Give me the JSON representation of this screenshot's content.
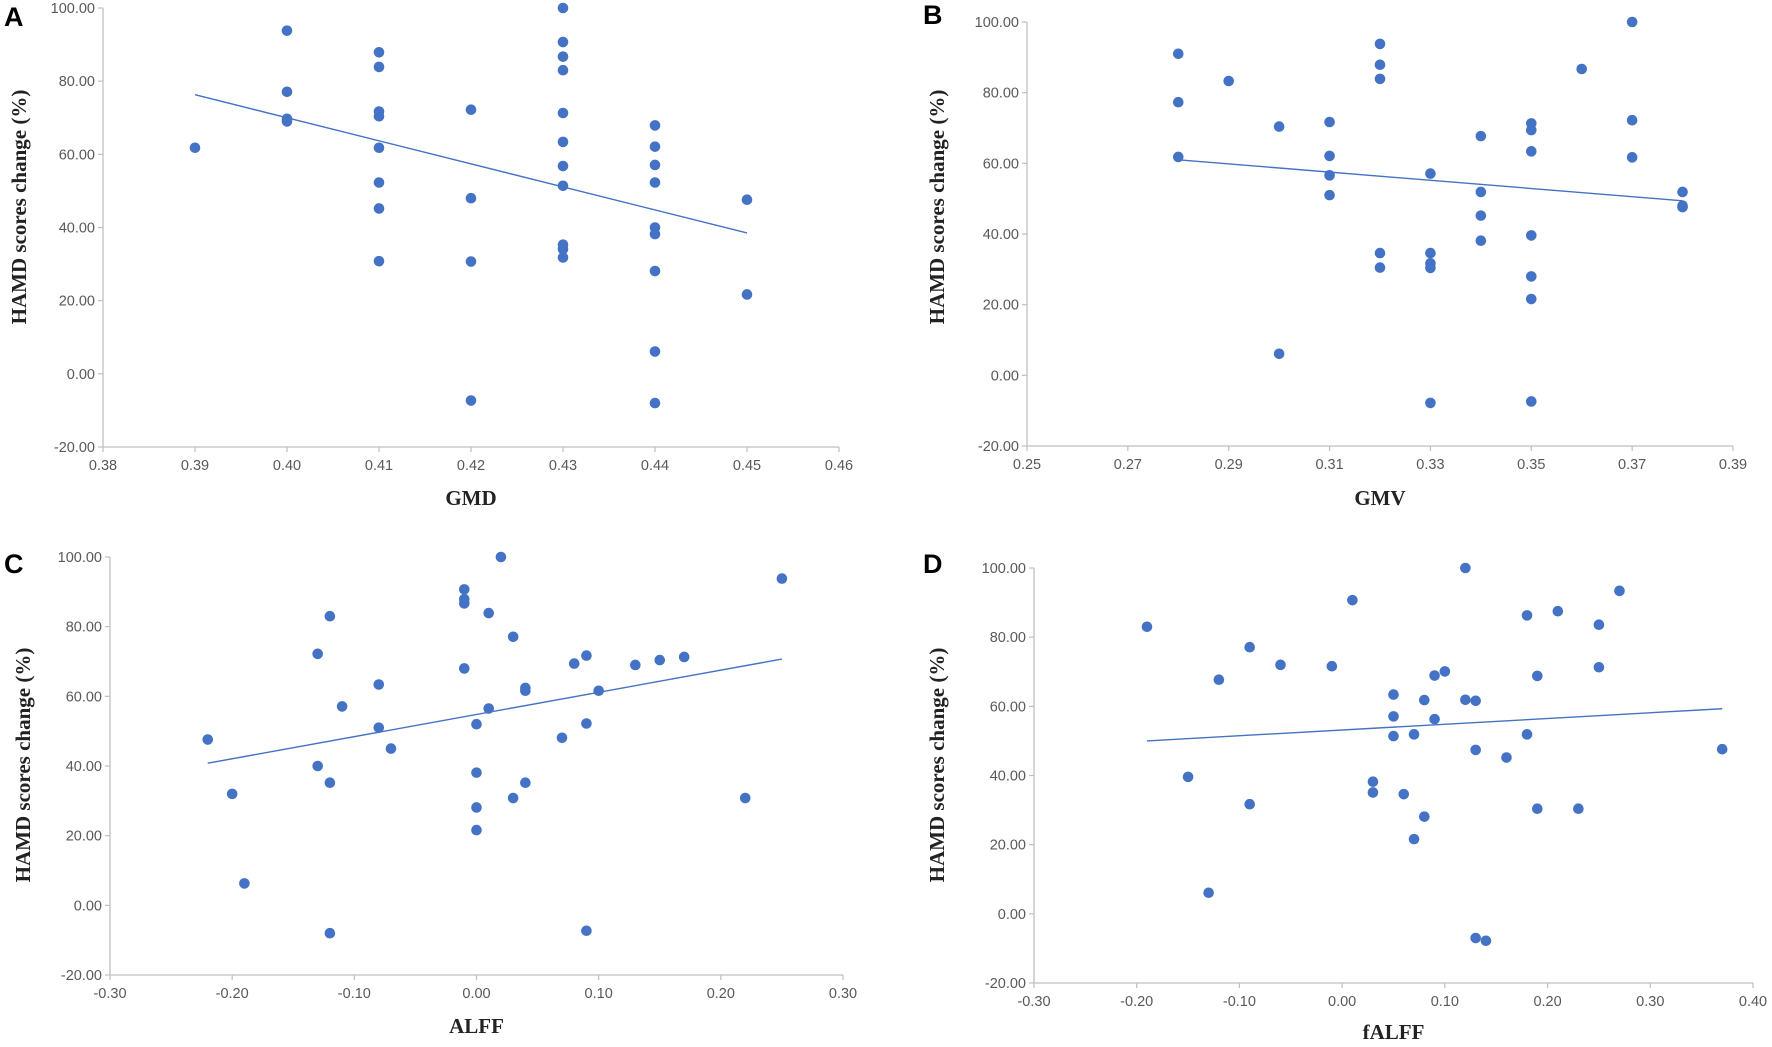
{
  "style": {
    "point_color": "#4472c4",
    "trend_color": "#4472c4",
    "axis_color": "#bfbfbf"
  },
  "chart_data": [
    {
      "panel": "A",
      "type": "scatter",
      "xlabel": "GMD",
      "ylabel": "HAMD scores change (%)",
      "xlim": [
        0.38,
        0.46
      ],
      "ylim": [
        -20,
        100
      ],
      "xticks": [
        "0.38",
        "0.39",
        "0.40",
        "0.41",
        "0.42",
        "0.43",
        "0.44",
        "0.45",
        "0.46"
      ],
      "yticks": [
        "-20.00",
        "0.00",
        "20.00",
        "40.00",
        "60.00",
        "80.00",
        "100.00"
      ],
      "trendline": {
        "x": [
          0.39,
          0.45
        ],
        "y": [
          76.3,
          38.5
        ]
      },
      "points": [
        [
          0.39,
          61.8
        ],
        [
          0.4,
          93.8
        ],
        [
          0.4,
          77.1
        ],
        [
          0.4,
          69.7
        ],
        [
          0.4,
          69.0
        ],
        [
          0.41,
          87.9
        ],
        [
          0.41,
          83.9
        ],
        [
          0.41,
          71.7
        ],
        [
          0.41,
          70.4
        ],
        [
          0.41,
          61.8
        ],
        [
          0.41,
          52.3
        ],
        [
          0.41,
          45.2
        ],
        [
          0.41,
          30.8
        ],
        [
          0.42,
          72.2
        ],
        [
          0.42,
          48.0
        ],
        [
          0.42,
          30.7
        ],
        [
          0.42,
          -7.3
        ],
        [
          0.43,
          100.0
        ],
        [
          0.43,
          90.7
        ],
        [
          0.43,
          86.7
        ],
        [
          0.43,
          83.0
        ],
        [
          0.43,
          71.3
        ],
        [
          0.43,
          63.4
        ],
        [
          0.43,
          56.8
        ],
        [
          0.43,
          51.4
        ],
        [
          0.43,
          35.3
        ],
        [
          0.43,
          34.1
        ],
        [
          0.43,
          31.8
        ],
        [
          0.44,
          67.9
        ],
        [
          0.44,
          62.1
        ],
        [
          0.44,
          57.1
        ],
        [
          0.44,
          52.3
        ],
        [
          0.44,
          40.0
        ],
        [
          0.44,
          38.2
        ],
        [
          0.44,
          28.1
        ],
        [
          0.44,
          6.1
        ],
        [
          0.44,
          -8.0
        ],
        [
          0.45,
          47.6
        ],
        [
          0.45,
          21.7
        ]
      ]
    },
    {
      "panel": "B",
      "type": "scatter",
      "xlabel": "GMV",
      "ylabel": "HAMD scores change (%)",
      "xlim": [
        0.25,
        0.39
      ],
      "ylim": [
        -20,
        100
      ],
      "xticks": [
        "0.25",
        "0.27",
        "0.29",
        "0.31",
        "0.33",
        "0.35",
        "0.37",
        "0.39"
      ],
      "yticks": [
        "-20.00",
        "0.00",
        "20.00",
        "40.00",
        "60.00",
        "80.00",
        "100.00"
      ],
      "trendline": {
        "x": [
          0.28,
          0.38
        ],
        "y": [
          61.0,
          49.4
        ]
      },
      "points": [
        [
          0.28,
          91.0
        ],
        [
          0.28,
          77.3
        ],
        [
          0.28,
          61.8
        ],
        [
          0.29,
          83.3
        ],
        [
          0.3,
          70.4
        ],
        [
          0.3,
          6.1
        ],
        [
          0.31,
          71.7
        ],
        [
          0.31,
          62.1
        ],
        [
          0.31,
          56.6
        ],
        [
          0.31,
          51.0
        ],
        [
          0.32,
          93.8
        ],
        [
          0.32,
          87.9
        ],
        [
          0.32,
          83.9
        ],
        [
          0.32,
          34.6
        ],
        [
          0.32,
          30.5
        ],
        [
          0.33,
          57.1
        ],
        [
          0.33,
          34.6
        ],
        [
          0.33,
          31.7
        ],
        [
          0.33,
          30.4
        ],
        [
          0.33,
          -7.8
        ],
        [
          0.34,
          67.7
        ],
        [
          0.34,
          51.9
        ],
        [
          0.34,
          45.2
        ],
        [
          0.34,
          38.1
        ],
        [
          0.35,
          71.3
        ],
        [
          0.35,
          69.4
        ],
        [
          0.35,
          63.4
        ],
        [
          0.35,
          39.6
        ],
        [
          0.35,
          28.0
        ],
        [
          0.35,
          21.6
        ],
        [
          0.35,
          -7.4
        ],
        [
          0.36,
          86.7
        ],
        [
          0.37,
          100.0
        ],
        [
          0.37,
          72.2
        ],
        [
          0.37,
          61.7
        ],
        [
          0.38,
          51.9
        ],
        [
          0.38,
          48.0
        ],
        [
          0.38,
          47.6
        ]
      ]
    },
    {
      "panel": "C",
      "type": "scatter",
      "xlabel": "ALFF",
      "ylabel": "HAMD scores change (%)",
      "xlim": [
        -0.3,
        0.3
      ],
      "ylim": [
        -20,
        100
      ],
      "xticks": [
        "-0.30",
        "-0.20",
        "-0.10",
        "0.00",
        "0.10",
        "0.20",
        "0.30"
      ],
      "yticks": [
        "-20.00",
        "0.00",
        "20.00",
        "40.00",
        "60.00",
        "80.00",
        "100.00"
      ],
      "trendline": {
        "x": [
          -0.22,
          0.25
        ],
        "y": [
          40.8,
          70.7
        ]
      },
      "points": [
        [
          -0.22,
          47.6
        ],
        [
          -0.2,
          32.0
        ],
        [
          -0.19,
          6.3
        ],
        [
          -0.13,
          72.2
        ],
        [
          -0.13,
          40.0
        ],
        [
          -0.12,
          83.0
        ],
        [
          -0.12,
          35.2
        ],
        [
          -0.12,
          -8.0
        ],
        [
          -0.11,
          57.1
        ],
        [
          -0.08,
          63.4
        ],
        [
          -0.08,
          51.0
        ],
        [
          -0.07,
          45.0
        ],
        [
          -0.01,
          90.7
        ],
        [
          -0.01,
          87.9
        ],
        [
          -0.01,
          86.7
        ],
        [
          -0.01,
          68.0
        ],
        [
          0.0,
          52.0
        ],
        [
          0.0,
          38.1
        ],
        [
          0.0,
          28.1
        ],
        [
          0.0,
          21.6
        ],
        [
          0.01,
          83.9
        ],
        [
          0.01,
          56.5
        ],
        [
          0.02,
          100.0
        ],
        [
          0.03,
          77.1
        ],
        [
          0.03,
          30.8
        ],
        [
          0.04,
          62.4
        ],
        [
          0.04,
          61.6
        ],
        [
          0.04,
          35.2
        ],
        [
          0.07,
          48.1
        ],
        [
          0.08,
          69.4
        ],
        [
          0.09,
          71.7
        ],
        [
          0.09,
          52.2
        ],
        [
          0.09,
          -7.3
        ],
        [
          0.1,
          61.6
        ],
        [
          0.13,
          69.0
        ],
        [
          0.15,
          70.4
        ],
        [
          0.17,
          71.3
        ],
        [
          0.22,
          30.8
        ],
        [
          0.25,
          93.8
        ]
      ]
    },
    {
      "panel": "D",
      "type": "scatter",
      "xlabel": "fALFF",
      "ylabel": "HAMD scores change (%)",
      "xlim": [
        -0.3,
        0.4
      ],
      "ylim": [
        -20,
        100
      ],
      "xticks": [
        "-0.30",
        "-0.20",
        "-0.10",
        "0.00",
        "0.10",
        "0.20",
        "0.30",
        "0.40"
      ],
      "yticks": [
        "-20.00",
        "0.00",
        "20.00",
        "40.00",
        "60.00",
        "80.00",
        "100.00"
      ],
      "trendline": {
        "x": [
          -0.19,
          0.37
        ],
        "y": [
          50.0,
          59.3
        ]
      },
      "points": [
        [
          -0.19,
          83.0
        ],
        [
          -0.15,
          39.6
        ],
        [
          -0.13,
          6.1
        ],
        [
          -0.12,
          67.7
        ],
        [
          -0.09,
          77.1
        ],
        [
          -0.09,
          31.7
        ],
        [
          -0.06,
          72.0
        ],
        [
          -0.01,
          71.6
        ],
        [
          0.01,
          90.7
        ],
        [
          0.03,
          38.2
        ],
        [
          0.03,
          35.1
        ],
        [
          0.05,
          63.4
        ],
        [
          0.05,
          57.1
        ],
        [
          0.05,
          51.4
        ],
        [
          0.06,
          34.6
        ],
        [
          0.07,
          51.9
        ],
        [
          0.07,
          21.6
        ],
        [
          0.08,
          61.8
        ],
        [
          0.08,
          28.1
        ],
        [
          0.09,
          68.9
        ],
        [
          0.09,
          56.3
        ],
        [
          0.1,
          70.1
        ],
        [
          0.12,
          100.0
        ],
        [
          0.12,
          61.9
        ],
        [
          0.13,
          61.6
        ],
        [
          0.13,
          47.4
        ],
        [
          0.13,
          -7.0
        ],
        [
          0.14,
          -7.8
        ],
        [
          0.16,
          45.2
        ],
        [
          0.18,
          86.3
        ],
        [
          0.18,
          51.9
        ],
        [
          0.19,
          68.8
        ],
        [
          0.19,
          30.4
        ],
        [
          0.21,
          87.5
        ],
        [
          0.23,
          30.4
        ],
        [
          0.25,
          83.6
        ],
        [
          0.25,
          71.3
        ],
        [
          0.27,
          93.4
        ],
        [
          0.37,
          47.6
        ]
      ]
    }
  ]
}
